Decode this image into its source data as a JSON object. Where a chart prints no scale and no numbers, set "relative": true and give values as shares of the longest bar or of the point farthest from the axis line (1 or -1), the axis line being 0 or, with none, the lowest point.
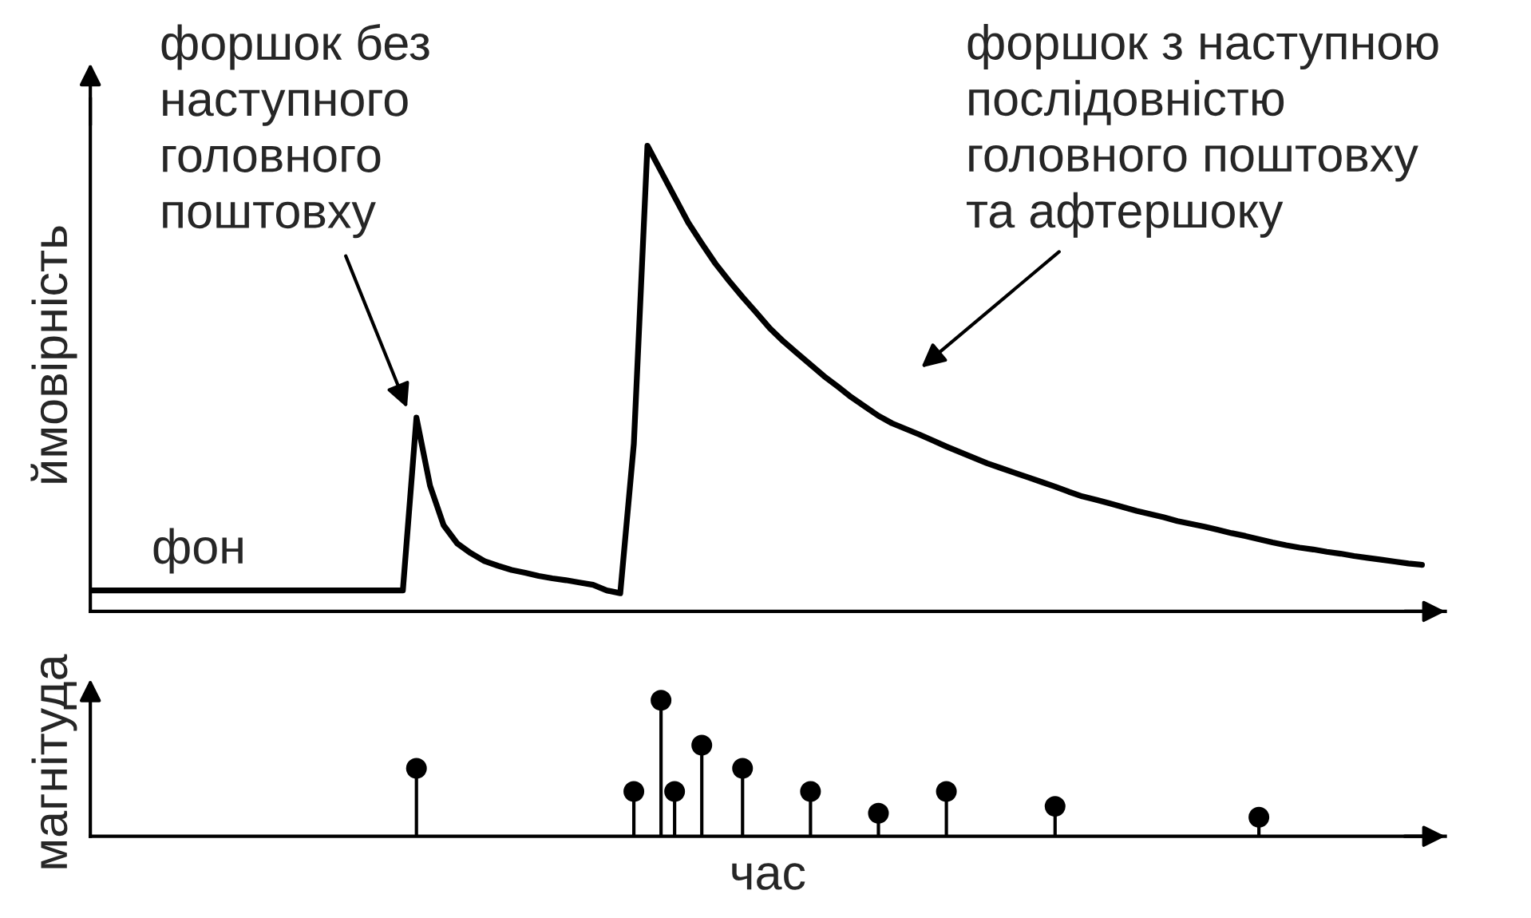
{
  "chart_data": [
    {
      "type": "line",
      "relative": true,
      "ylabel": "ймовірність",
      "tick_labels": false,
      "marker": "none",
      "line_style": "solid",
      "categories": [
        null,
        null,
        null,
        null,
        null,
        null,
        null,
        null,
        null,
        null,
        null,
        null,
        null,
        null,
        null,
        null,
        null,
        null,
        null,
        null,
        null,
        null,
        null,
        null,
        null,
        null,
        null,
        null,
        null,
        null,
        null,
        null,
        null,
        null,
        null,
        null,
        null,
        null,
        null,
        null,
        null,
        null,
        null,
        null,
        null,
        null,
        null,
        null,
        null,
        null,
        null,
        null,
        null,
        null,
        null,
        null,
        null,
        null,
        null,
        null,
        null,
        null,
        null,
        null,
        null,
        null,
        null,
        null,
        null,
        null,
        null,
        null,
        null,
        null,
        null,
        null,
        null,
        null,
        null,
        null,
        null,
        null,
        null,
        null,
        null,
        null,
        null,
        null,
        null,
        null,
        null,
        null,
        null,
        null,
        null,
        null,
        null,
        null,
        null
      ],
      "series": [
        {
          "color": "#000000",
          "values": [
            0.045,
            0.045,
            0.045,
            0.045,
            0.045,
            0.045,
            0.045,
            0.045,
            0.045,
            0.045,
            0.045,
            0.045,
            0.045,
            0.045,
            0.045,
            0.045,
            0.045,
            0.045,
            0.045,
            0.045,
            0.045,
            0.045,
            0.045,
            0.045,
            0.416,
            0.27,
            0.185,
            0.146,
            0.125,
            0.108,
            0.098,
            0.089,
            0.083,
            0.076,
            0.071,
            0.067,
            0.062,
            0.057,
            0.045,
            0.039,
            0.36,
            1,
            0.945,
            0.89,
            0.835,
            0.79,
            0.747,
            0.71,
            0.675,
            0.642,
            0.608,
            0.58,
            0.555,
            0.53,
            0.505,
            0.483,
            0.46,
            0.44,
            0.42,
            0.404,
            0.392,
            0.38,
            0.367,
            0.354,
            0.342,
            0.33,
            0.318,
            0.308,
            0.298,
            0.288,
            0.278,
            0.268,
            0.257,
            0.247,
            0.24,
            0.232,
            0.224,
            0.216,
            0.209,
            0.202,
            0.194,
            0.188,
            0.182,
            0.175,
            0.168,
            0.162,
            0.155,
            0.148,
            0.142,
            0.137,
            0.133,
            0.128,
            0.124,
            0.119,
            0.115,
            0.111,
            0.107,
            0.103,
            0.1
          ]
        }
      ],
      "annotations": [
        "фон",
        "форшок без\nнаступного\nголовного\nпоштовху",
        "форшок з наступною\nпослідовністю\nголовного поштовху\nта афтершоку"
      ]
    },
    {
      "type": "lollipop",
      "relative": true,
      "ylabel": "магнітуда",
      "xlabel": "час",
      "tick_labels": false,
      "marker": "circle",
      "categories": [
        null,
        null,
        null,
        null,
        null,
        null,
        null,
        null,
        null,
        null,
        null,
        null,
        null,
        null,
        null,
        null,
        null,
        null,
        null,
        null,
        null,
        null,
        null,
        null,
        null,
        null,
        null,
        null,
        null,
        null,
        null,
        null,
        null,
        null,
        null,
        null,
        null,
        null,
        null,
        null,
        null,
        null,
        null,
        null,
        null,
        null,
        null,
        null,
        null,
        null,
        null,
        null,
        null,
        null,
        null,
        null,
        null,
        null,
        null,
        null,
        null,
        null,
        null,
        null,
        null,
        null,
        null,
        null,
        null,
        null,
        null,
        null,
        null,
        null,
        null,
        null,
        null,
        null,
        null,
        null,
        null,
        null,
        null,
        null,
        null,
        null,
        null,
        null,
        null,
        null,
        null,
        null,
        null,
        null,
        null,
        null,
        null,
        null,
        null
      ],
      "series": [
        {
          "color": "#000000",
          "values": [
            null,
            null,
            null,
            null,
            null,
            null,
            null,
            null,
            null,
            null,
            null,
            null,
            null,
            null,
            null,
            null,
            null,
            null,
            null,
            null,
            null,
            null,
            null,
            null,
            0.5,
            null,
            null,
            null,
            null,
            null,
            null,
            null,
            null,
            null,
            null,
            null,
            null,
            null,
            null,
            null,
            0.33,
            null,
            1,
            0.33,
            null,
            0.67,
            null,
            null,
            0.5,
            null,
            null,
            null,
            null,
            0.33,
            null,
            null,
            null,
            null,
            0.17,
            null,
            null,
            null,
            null,
            0.33,
            null,
            null,
            null,
            null,
            null,
            null,
            null,
            0.22,
            null,
            null,
            null,
            null,
            null,
            null,
            null,
            null,
            null,
            null,
            null,
            null,
            null,
            null,
            0.14,
            null,
            null,
            null,
            null,
            null,
            null,
            null,
            null,
            null,
            null,
            null,
            null
          ]
        }
      ]
    }
  ]
}
